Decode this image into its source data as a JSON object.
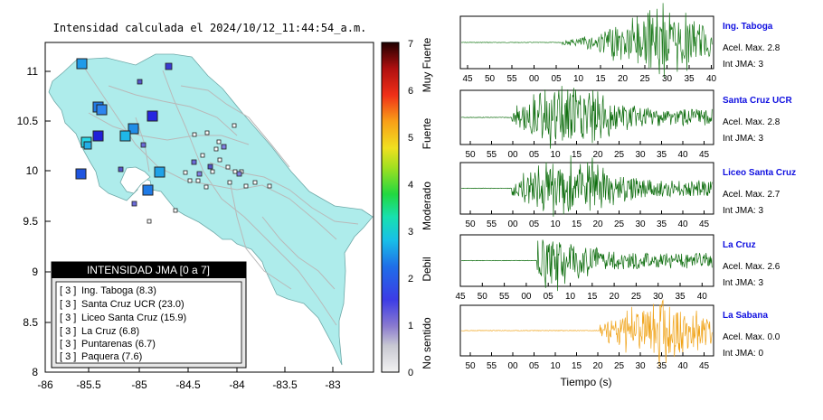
{
  "map": {
    "title": "Intensidad calculada el 2024/10/12_11:44:54_a.m.",
    "x_ticks": [
      "-86",
      "-85.5",
      "-85",
      "-84.5",
      "-84",
      "-83.5",
      "-83"
    ],
    "y_ticks": [
      "11",
      "10.5",
      "10",
      "9.5",
      "9",
      "8.5",
      "8"
    ],
    "colorbar": {
      "ticks": [
        "0",
        "1",
        "2",
        "3",
        "4",
        "5",
        "6",
        "7"
      ],
      "labels": [
        "No sentido",
        "Debil",
        "Moderado",
        "Fuerte",
        "Muy Fuerte"
      ]
    },
    "legend": {
      "title": "INTENSIDAD JMA [0 a 7]",
      "rows": [
        {
          "level": "[ 3 ]",
          "station": "Ing. Taboga (8.3)"
        },
        {
          "level": "[ 3 ]",
          "station": "Santa Cruz UCR (23.0)"
        },
        {
          "level": "[ 3 ]",
          "station": "Liceo Santa Cruz (15.9)"
        },
        {
          "level": "[ 3 ]",
          "station": "La Cruz (6.8)"
        },
        {
          "level": "[ 3 ]",
          "station": "Puntarenas (6.7)"
        },
        {
          "level": "[ 3 ]",
          "station": "Paquera (7.6)"
        }
      ]
    },
    "colors": {
      "land": "#aeeceb",
      "sea": "#ffffff",
      "roads": "#b9b9b9"
    }
  },
  "seismograms": {
    "time_label": "Tiempo (s)",
    "traces": [
      {
        "name": "Ing. Taboga",
        "accel": "Acel. Max. 2.8",
        "jma": "Int JMA: 3",
        "color": "#1b7a1b",
        "ticks": [
          "45",
          "50",
          "55",
          "00",
          "05",
          "10",
          "15",
          "20",
          "25",
          "30",
          "35",
          "40"
        ]
      },
      {
        "name": "Santa Cruz UCR",
        "accel": "Acel. Max. 2.8",
        "jma": "Int JMA: 3",
        "color": "#0f6e0f",
        "ticks": [
          "50",
          "55",
          "00",
          "05",
          "10",
          "15",
          "20",
          "25",
          "30",
          "35",
          "40",
          "45"
        ]
      },
      {
        "name": "Liceo Santa Cruz",
        "accel": "Acel. Max. 2.7",
        "jma": "Int JMA: 3",
        "color": "#0f6e0f",
        "ticks": [
          "50",
          "55",
          "00",
          "05",
          "10",
          "15",
          "20",
          "25",
          "30",
          "35",
          "40",
          "45"
        ]
      },
      {
        "name": "La Cruz",
        "accel": "Acel. Max. 2.6",
        "jma": "Int JMA: 3",
        "color": "#0f6e0f",
        "ticks": [
          "45",
          "50",
          "55",
          "00",
          "05",
          "10",
          "15",
          "20",
          "25",
          "30",
          "35",
          "40"
        ]
      },
      {
        "name": "La Sabana",
        "accel": "Acel. Max. 0.0",
        "jma": "Int JMA: 0",
        "color": "#f0a318",
        "ticks": [
          "50",
          "55",
          "00",
          "05",
          "10",
          "15",
          "20",
          "25",
          "30",
          "35",
          "40",
          "45"
        ]
      }
    ]
  }
}
